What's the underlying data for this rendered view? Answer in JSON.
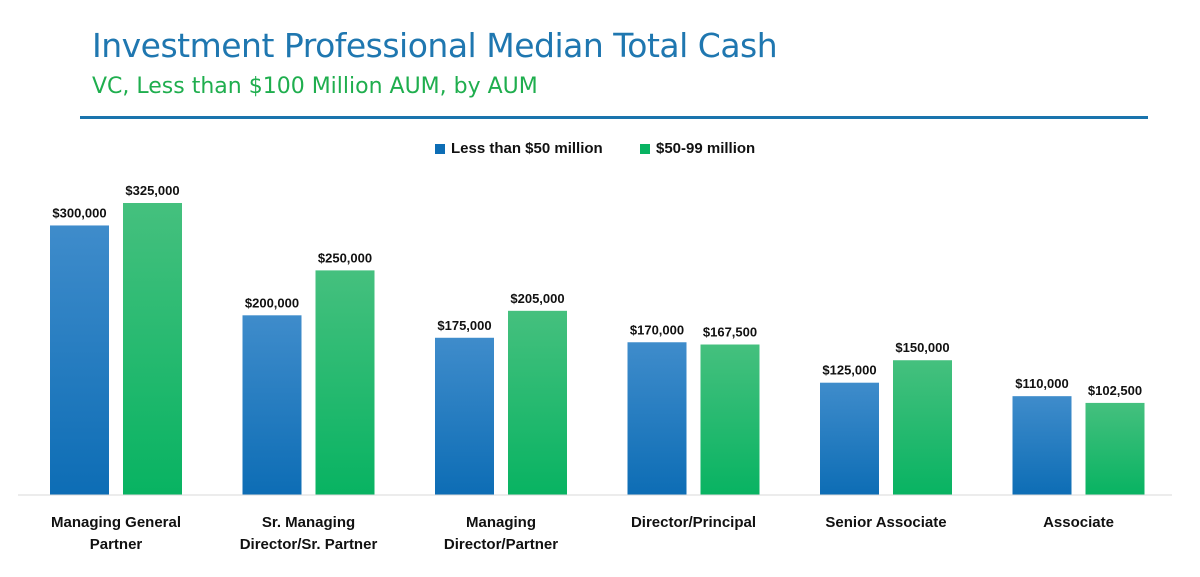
{
  "chart_data": {
    "type": "bar",
    "title": "Investment Professional Median Total Cash",
    "subtitle": "VC, Less than $100 Million AUM, by AUM",
    "categories": [
      [
        "Managing General",
        "Partner"
      ],
      [
        "Sr. Managing",
        "Director/Sr. Partner"
      ],
      [
        "Managing",
        "Director/Partner"
      ],
      [
        "Director/Principal"
      ],
      [
        "Senior Associate"
      ],
      [
        "Associate"
      ]
    ],
    "series": [
      {
        "name": "Less than $50 million",
        "color_top": "#3f8ccb",
        "color_bottom": "#0d6db5",
        "values": [
          300000,
          200000,
          175000,
          170000,
          125000,
          110000
        ],
        "labels": [
          "$300,000",
          "$200,000",
          "$175,000",
          "$170,000",
          "$125,000",
          "$110,000"
        ]
      },
      {
        "name": "$50-99 million",
        "color_top": "#45c07e",
        "color_bottom": "#08b362",
        "values": [
          325000,
          250000,
          205000,
          167500,
          150000,
          102500
        ],
        "labels": [
          "$325,000",
          "$250,000",
          "$205,000",
          "$167,500",
          "$150,000",
          "$102,500"
        ]
      }
    ],
    "xlabel": "",
    "ylabel": "",
    "ylim": [
      0,
      325000
    ],
    "grid": false,
    "legend": "top-center"
  }
}
